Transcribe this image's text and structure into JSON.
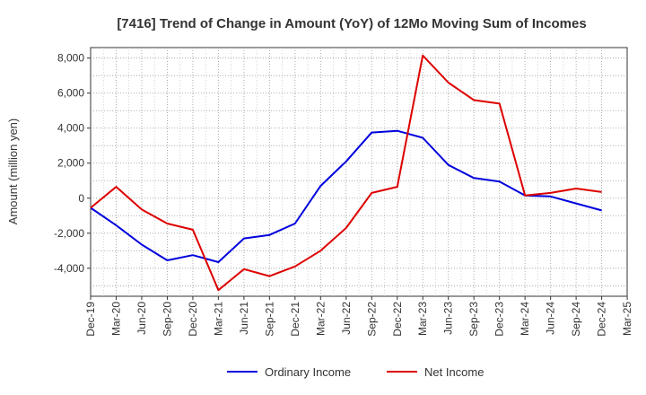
{
  "chart_data": {
    "type": "line",
    "title": "[7416]  Trend of Change in Amount (YoY) of 12Mo Moving Sum of Incomes",
    "xlabel": "",
    "ylabel": "Amount (million yen)",
    "ylim": [
      -5600,
      8600
    ],
    "yticks": [
      -4000,
      -2000,
      0,
      2000,
      4000,
      6000,
      8000
    ],
    "ytick_labels": [
      "-4,000",
      "-2,000",
      "0",
      "2,000",
      "4,000",
      "6,000",
      "8,000"
    ],
    "categories": [
      "Dec-19",
      "Mar-20",
      "Jun-20",
      "Sep-20",
      "Dec-20",
      "Mar-21",
      "Jun-21",
      "Sep-21",
      "Dec-21",
      "Mar-22",
      "Jun-22",
      "Sep-22",
      "Dec-22",
      "Mar-23",
      "Jun-23",
      "Sep-23",
      "Dec-23",
      "Mar-24",
      "Jun-24",
      "Sep-24",
      "Dec-24",
      "Mar-25"
    ],
    "grid": true,
    "legend_position": "bottom",
    "series": [
      {
        "name": "Ordinary Income",
        "color": "#0000dd",
        "values": [
          -550,
          -1550,
          -2650,
          -3550,
          -3250,
          -3650,
          -2300,
          -2100,
          -1450,
          700,
          2100,
          3750,
          3850,
          3450,
          1900,
          1150,
          950,
          150,
          100,
          -300,
          -700,
          null
        ]
      },
      {
        "name": "Net Income",
        "color": "#dd0000",
        "values": [
          -550,
          650,
          -650,
          -1450,
          -1800,
          -5250,
          -4050,
          -4450,
          -3900,
          -3000,
          -1700,
          300,
          650,
          8150,
          6600,
          5600,
          5400,
          150,
          300,
          550,
          350,
          null
        ]
      }
    ]
  }
}
